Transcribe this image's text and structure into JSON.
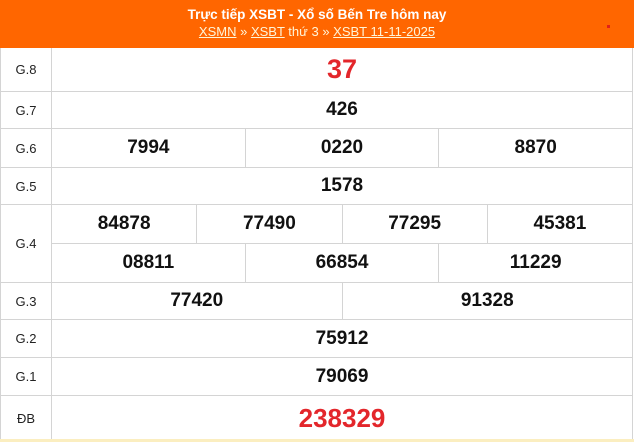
{
  "header": {
    "title": "Trực tiếp XSBT - Xổ số Bến Tre hôm nay",
    "breadcrumb": [
      {
        "label": "XSMN"
      },
      {
        "label": "XSBT"
      },
      {
        "label": "XSBT 11-11-2025"
      }
    ],
    "sep": "»",
    "weekday": "thứ 3",
    "bg_color": "#ff6600"
  },
  "prizes": [
    {
      "label": "G.8",
      "values": [
        "37"
      ]
    },
    {
      "label": "G.7",
      "values": [
        "426"
      ]
    },
    {
      "label": "G.6",
      "values": [
        "7994",
        "0220",
        "8870"
      ]
    },
    {
      "label": "G.5",
      "values": [
        "1578"
      ]
    },
    {
      "label": "G.4",
      "values": [
        "84878",
        "77490",
        "77295",
        "45381",
        "08811",
        "66854",
        "11229"
      ]
    },
    {
      "label": "G.3",
      "values": [
        "77420",
        "91328"
      ]
    },
    {
      "label": "G.2",
      "values": [
        "75912"
      ]
    },
    {
      "label": "G.1",
      "values": [
        "79069"
      ]
    },
    {
      "label": "ĐB",
      "values": [
        "238329"
      ]
    }
  ],
  "highlight_color": "#e3262b"
}
